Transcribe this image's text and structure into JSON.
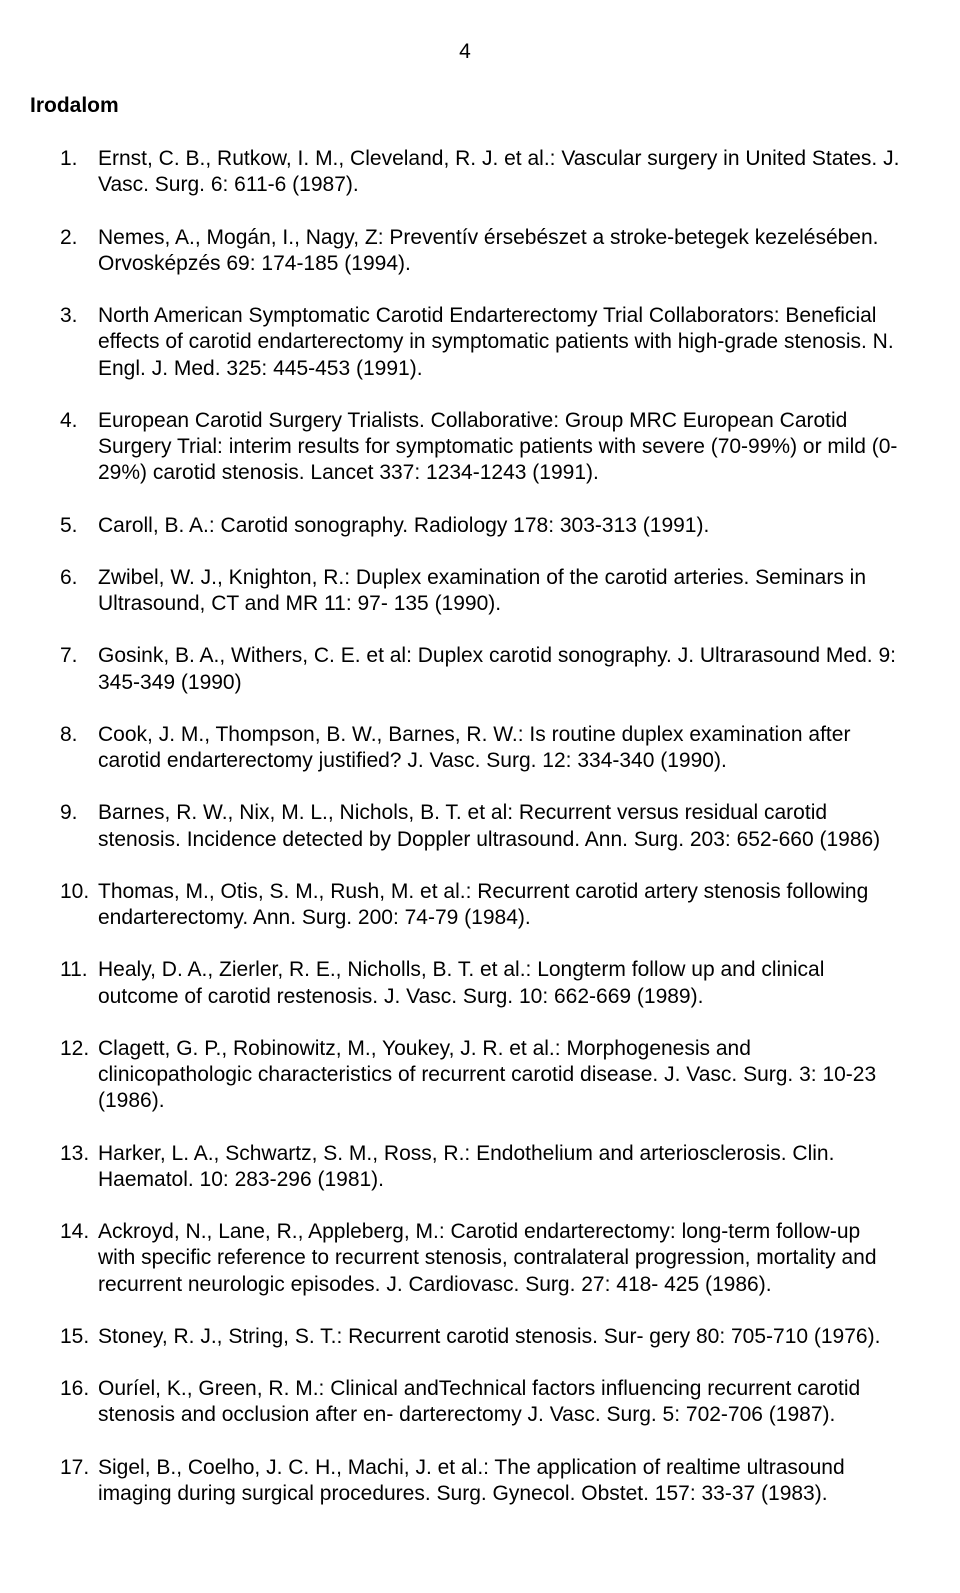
{
  "page_number": "4",
  "section_title": "Irodalom",
  "references": [
    {
      "num": "1.",
      "text": "Ernst, C. B., Rutkow, I. M., Cleveland, R. J. et al.: Vascular surgery in United States. J. Vasc. Surg. 6: 611-6 (1987)."
    },
    {
      "num": "2.",
      "text": "Nemes, A., Mogán, I., Nagy, Z: Preventív érsebészet a stroke-betegek kezelésében. Orvosképzés 69: 174-185 (1994)."
    },
    {
      "num": "3.",
      "text": "North American Symptomatic Carotid Endarterectomy Trial Collaborators: Beneficial effects of carotid endarterectomy in symptomatic patients with high-grade stenosis. N. Engl. J. Med. 325: 445-453 (1991)."
    },
    {
      "num": "4.",
      "text": "European Carotid Surgery Trialists. Collaborative: Group MRC European Carotid Surgery Trial: interim results for symptomatic patients with severe (70-99%) or mild (0-29%) carotid stenosis. Lancet 337: 1234-1243 (1991)."
    },
    {
      "num": "5.",
      "text": "Caroll, B. A.: Carotid sonography. Radiology 178: 303-313 (1991)."
    },
    {
      "num": "6.",
      "text": "Zwibel, W. J., Knighton, R.: Duplex examination of the carotid arteries. Seminars in Ultrasound, CT and MR 11: 97- 135 (1990)."
    },
    {
      "num": "7.",
      "text": "Gosink, B. A., Withers, C. E. et al: Duplex carotid sonography. J. Ultrarasound Med. 9: 345-349 (1990)"
    },
    {
      "num": "8.",
      "text": "Cook, J. M., Thompson, B. W., Barnes, R. W.: Is routine duplex examination after carotid endarterectomy justified? J. Vasc. Surg. 12: 334-340 (1990)."
    },
    {
      "num": "9.",
      "text": "Barnes, R. W., Nix, M. L., Nichols, B. T. et al: Recurrent versus residual carotid stenosis. Incidence detected by Doppler ultrasound. Ann. Surg. 203: 652-660 (1986)"
    },
    {
      "num": "10.",
      "text": "Thomas, M., Otis, S. M., Rush, M. et al.: Recurrent carotid artery stenosis following endarterectomy. Ann. Surg. 200: 74-79 (1984)."
    },
    {
      "num": "11.",
      "text": "Healy, D. A., Zierler, R. E., Nicholls, B. T. et al.: Longterm follow up and clinical outcome of carotid restenosis. J. Vasc. Surg. 10: 662-669 (1989)."
    },
    {
      "num": "12.",
      "text": "Clagett, G. P., Robinowitz, M., Youkey, J. R. et al.: Morphogenesis and clinicopathologic characteristics of recurrent carotid disease. J. Vasc. Surg. 3: 10-23 (1986)."
    },
    {
      "num": "13.",
      "text": "Harker, L. A., Schwartz, S. M., Ross, R.: Endothelium and arteriosclerosis. Clin. Haematol. 10: 283-296 (1981)."
    },
    {
      "num": "14.",
      "text": "Ackroyd, N., Lane, R., Appleberg, M.: Carotid endarterectomy: long-term follow-up with specific reference to recurrent stenosis, contralateral progression, mortality and recurrent neurologic episodes. J. Cardiovasc. Surg. 27: 418- 425 (1986)."
    },
    {
      "num": "15.",
      "text": "Stoney, R. J., String, S. T.: Recurrent carotid stenosis. Sur- gery 80: 705-710 (1976)."
    },
    {
      "num": "16.",
      "text": "Ouríel, K., Green, R. M.: Clinical andTechnical factors influencing recurrent carotid stenosis and occlusion after en- darterectomy J. Vasc. Surg. 5: 702-706 (1987)."
    },
    {
      "num": "17.",
      "text": "Sigel, B., Coelho, J. C. H., Machi, J. et al.: The application of realtime ultrasound imaging during surgical procedures. Surg. Gynecol. Obstet. 157: 33-37 (1983)."
    }
  ]
}
